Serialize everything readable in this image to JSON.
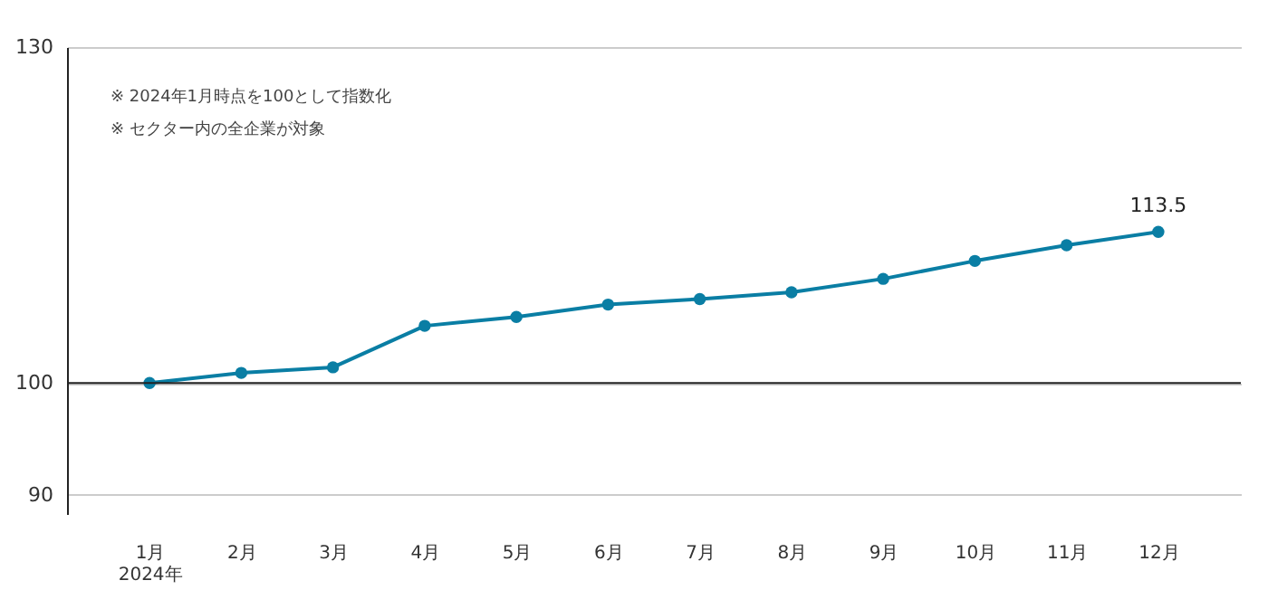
{
  "chart_data": {
    "type": "line",
    "categories": [
      "1月\n2024年",
      "2月",
      "3月",
      "4月",
      "5月",
      "6月",
      "7月",
      "8月",
      "9月",
      "10月",
      "11月",
      "12月"
    ],
    "series": [
      {
        "color": "#0a7ea4",
        "values": [
          100,
          100.9,
          101.4,
          105.1,
          105.9,
          107.0,
          107.5,
          108.1,
          109.3,
          110.9,
          112.3,
          113.5
        ],
        "value_labels": [
          null,
          null,
          null,
          null,
          null,
          null,
          null,
          null,
          null,
          null,
          null,
          "113.5"
        ]
      }
    ],
    "ylim": [
      88.3,
      130
    ],
    "yticks": [
      90,
      100,
      130
    ],
    "grid": "y",
    "marker": "circle",
    "line_style": "solid",
    "ref_lines": [
      {
        "axis": "y",
        "value": 100,
        "color": "#222222"
      }
    ],
    "annotations": [
      "※ 2024年1月時点を100として指数化",
      "※ セクター内の全企業が対象"
    ]
  }
}
